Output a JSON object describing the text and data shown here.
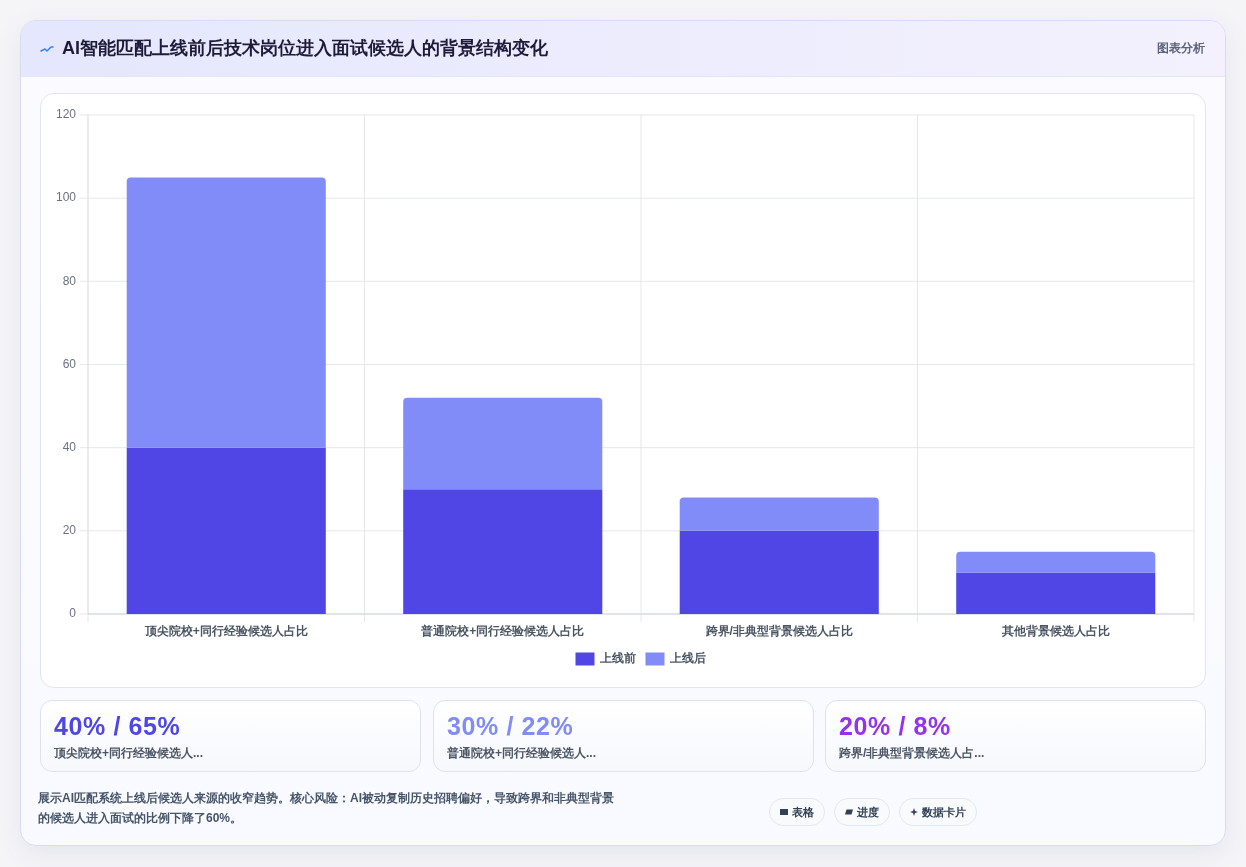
{
  "chart_data": [
    {
      "type": "bar",
      "title": "AI智能匹配上线前后技术岗位进入面试候选人的背景结构变化",
      "subtitle": "图表分析",
      "categories": [
        "顶尖院校+同行经验候选人占比",
        "普通院校+同行经验候选人占比",
        "跨界/非典型背景候选人占比",
        "其他背景候选人占比"
      ],
      "series": [
        {
          "name": "上线前",
          "color": "#4f46e5",
          "values": [
            40,
            30,
            20,
            10
          ]
        },
        {
          "name": "上线后",
          "color": "#818cf8",
          "values": [
            65,
            22,
            8,
            5
          ]
        }
      ],
      "stacked": true,
      "ylim": [
        0,
        120
      ],
      "yticks": [
        0,
        20,
        40,
        60,
        80,
        100,
        120
      ],
      "grid": true,
      "legend": "bottom",
      "annotations": [
        "展示AI匹配系统上线后候选人来源的收窄趋势。核心风险：AI被动复制历史招聘偏好，导致跨界和非典型背景的候选人进入面试的比例下降了60%。"
      ]
    },
    {
      "type": "other",
      "title": "40% / 65%",
      "subtitle": "顶尖院校+同行经验候选人..."
    },
    {
      "type": "other",
      "title": "30% / 22%",
      "subtitle": "普通院校+同行经验候选人..."
    },
    {
      "type": "other",
      "title": "20% / 8%",
      "subtitle": "跨界/非典型背景候选人占..."
    },
    {
      "type": "other",
      "annotations": [
        "表格",
        "进度",
        "数据卡片"
      ]
    }
  ]
}
